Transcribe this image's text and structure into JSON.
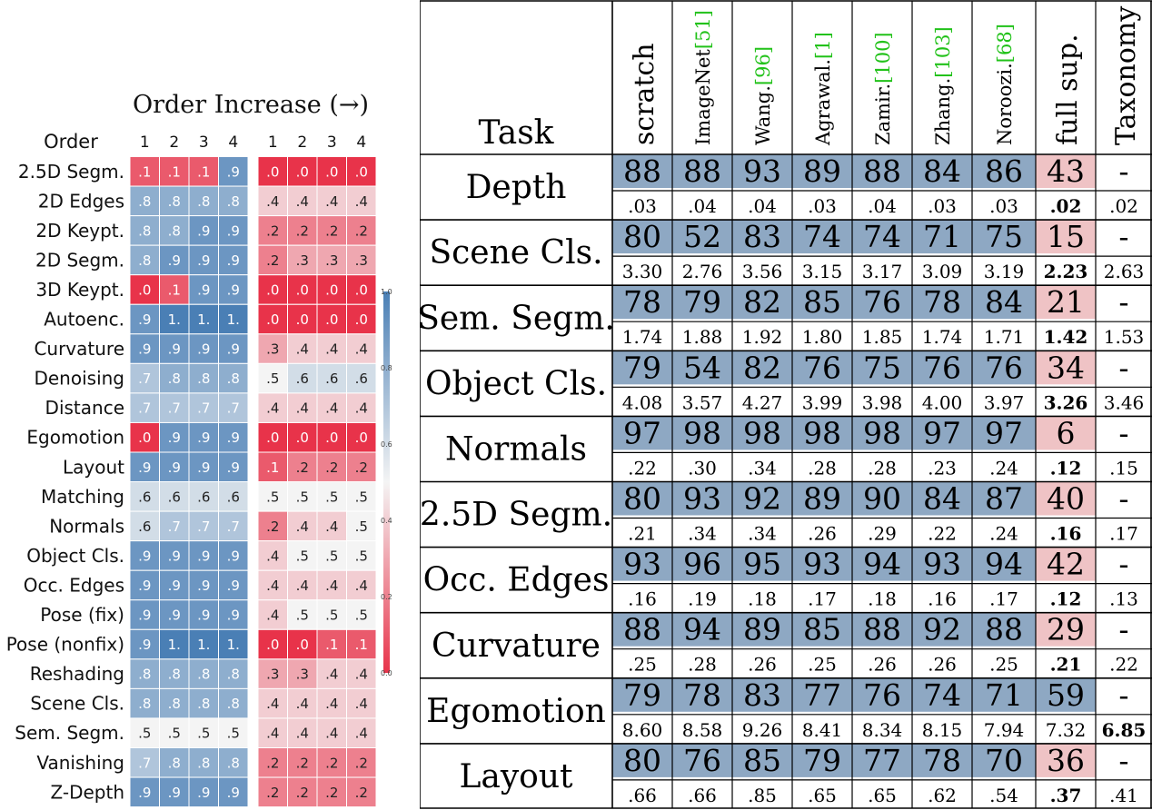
{
  "heatmap": {
    "title": "Order Increase (→)",
    "row_header": "Order",
    "columns": [
      "1",
      "2",
      "3",
      "4"
    ],
    "colorbar_ticks": [
      "1.0",
      "0.8",
      "0.6",
      "0.4",
      "0.2",
      "0.0"
    ],
    "colors": {
      "low": "#e8334a",
      "mid": "#f4f4f4",
      "high": "#4a7fb5"
    }
  },
  "chart_data": {
    "type": "heatmap",
    "title": "Order Increase (→)",
    "ylabel": "Order",
    "x": [
      "1",
      "2",
      "3",
      "4"
    ],
    "range": [
      0.0,
      1.0
    ],
    "rows": [
      "2.5D Segm.",
      "2D Edges",
      "2D Keypt.",
      "2D Segm.",
      "3D Keypt.",
      "Autoenc.",
      "Curvature",
      "Denoising",
      "Distance",
      "Egomotion",
      "Layout",
      "Matching",
      "Normals",
      "Object Cls.",
      "Occ. Edges",
      "Pose (fix)",
      "Pose (nonfix)",
      "Reshading",
      "Scene Cls.",
      "Sem. Segm.",
      "Vanishing",
      "Z-Depth"
    ],
    "panels": [
      {
        "values": [
          [
            0.1,
            0.1,
            0.1,
            0.9
          ],
          [
            0.8,
            0.8,
            0.8,
            0.8
          ],
          [
            0.8,
            0.8,
            0.9,
            0.9
          ],
          [
            0.8,
            0.9,
            0.9,
            0.9
          ],
          [
            0.0,
            0.1,
            0.9,
            0.9
          ],
          [
            0.9,
            1.0,
            1.0,
            1.0
          ],
          [
            0.9,
            0.9,
            0.9,
            0.9
          ],
          [
            0.7,
            0.8,
            0.8,
            0.8
          ],
          [
            0.7,
            0.7,
            0.7,
            0.7
          ],
          [
            0.0,
            0.9,
            0.9,
            0.9
          ],
          [
            0.9,
            0.9,
            0.9,
            0.9
          ],
          [
            0.6,
            0.6,
            0.6,
            0.6
          ],
          [
            0.6,
            0.7,
            0.7,
            0.7
          ],
          [
            0.9,
            0.9,
            0.9,
            0.9
          ],
          [
            0.9,
            0.9,
            0.9,
            0.9
          ],
          [
            0.9,
            0.9,
            0.9,
            0.9
          ],
          [
            0.9,
            1.0,
            1.0,
            1.0
          ],
          [
            0.8,
            0.8,
            0.8,
            0.8
          ],
          [
            0.8,
            0.8,
            0.8,
            0.8
          ],
          [
            0.5,
            0.5,
            0.5,
            0.5
          ],
          [
            0.7,
            0.8,
            0.8,
            0.8
          ],
          [
            0.9,
            0.9,
            0.9,
            0.9
          ]
        ],
        "labels": [
          [
            ".1",
            ".1",
            ".1",
            ".9"
          ],
          [
            ".8",
            ".8",
            ".8",
            ".8"
          ],
          [
            ".8",
            ".8",
            ".9",
            ".9"
          ],
          [
            ".8",
            ".9",
            ".9",
            ".9"
          ],
          [
            ".0",
            ".1",
            ".9",
            ".9"
          ],
          [
            ".9",
            "1.",
            "1.",
            "1."
          ],
          [
            ".9",
            ".9",
            ".9",
            ".9"
          ],
          [
            ".7",
            ".8",
            ".8",
            ".8"
          ],
          [
            ".7",
            ".7",
            ".7",
            ".7"
          ],
          [
            ".0",
            ".9",
            ".9",
            ".9"
          ],
          [
            ".9",
            ".9",
            ".9",
            ".9"
          ],
          [
            ".6",
            ".6",
            ".6",
            ".6"
          ],
          [
            ".6",
            ".7",
            ".7",
            ".7"
          ],
          [
            ".9",
            ".9",
            ".9",
            ".9"
          ],
          [
            ".9",
            ".9",
            ".9",
            ".9"
          ],
          [
            ".9",
            ".9",
            ".9",
            ".9"
          ],
          [
            ".9",
            "1.",
            "1.",
            "1."
          ],
          [
            ".8",
            ".8",
            ".8",
            ".8"
          ],
          [
            ".8",
            ".8",
            ".8",
            ".8"
          ],
          [
            ".5",
            ".5",
            ".5",
            ".5"
          ],
          [
            ".7",
            ".8",
            ".8",
            ".8"
          ],
          [
            ".9",
            ".9",
            ".9",
            ".9"
          ]
        ]
      },
      {
        "values": [
          [
            0.0,
            0.0,
            0.0,
            0.0
          ],
          [
            0.4,
            0.4,
            0.4,
            0.4
          ],
          [
            0.2,
            0.2,
            0.2,
            0.2
          ],
          [
            0.2,
            0.3,
            0.3,
            0.3
          ],
          [
            0.0,
            0.0,
            0.0,
            0.0
          ],
          [
            0.0,
            0.0,
            0.0,
            0.0
          ],
          [
            0.3,
            0.4,
            0.4,
            0.4
          ],
          [
            0.5,
            0.6,
            0.6,
            0.6
          ],
          [
            0.4,
            0.4,
            0.4,
            0.4
          ],
          [
            0.0,
            0.0,
            0.0,
            0.0
          ],
          [
            0.1,
            0.2,
            0.2,
            0.2
          ],
          [
            0.5,
            0.5,
            0.5,
            0.5
          ],
          [
            0.2,
            0.4,
            0.4,
            0.5
          ],
          [
            0.4,
            0.5,
            0.5,
            0.5
          ],
          [
            0.4,
            0.4,
            0.4,
            0.4
          ],
          [
            0.4,
            0.5,
            0.5,
            0.5
          ],
          [
            0.0,
            0.0,
            0.1,
            0.1
          ],
          [
            0.3,
            0.3,
            0.4,
            0.4
          ],
          [
            0.4,
            0.4,
            0.4,
            0.4
          ],
          [
            0.4,
            0.4,
            0.4,
            0.4
          ],
          [
            0.2,
            0.2,
            0.2,
            0.2
          ],
          [
            0.2,
            0.2,
            0.2,
            0.2
          ]
        ],
        "labels": [
          [
            ".0",
            ".0",
            ".0",
            ".0"
          ],
          [
            ".4",
            ".4",
            ".4",
            ".4"
          ],
          [
            ".2",
            ".2",
            ".2",
            ".2"
          ],
          [
            ".2",
            ".3",
            ".3",
            ".3"
          ],
          [
            ".0",
            ".0",
            ".0",
            ".0"
          ],
          [
            ".0",
            ".0",
            ".0",
            ".0"
          ],
          [
            ".3",
            ".4",
            ".4",
            ".4"
          ],
          [
            ".5",
            ".6",
            ".6",
            ".6"
          ],
          [
            ".4",
            ".4",
            ".4",
            ".4"
          ],
          [
            ".0",
            ".0",
            ".0",
            ".0"
          ],
          [
            ".1",
            ".2",
            ".2",
            ".2"
          ],
          [
            ".5",
            ".5",
            ".5",
            ".5"
          ],
          [
            ".2",
            ".4",
            ".4",
            ".5"
          ],
          [
            ".4",
            ".5",
            ".5",
            ".5"
          ],
          [
            ".4",
            ".4",
            ".4",
            ".4"
          ],
          [
            ".4",
            ".5",
            ".5",
            ".5"
          ],
          [
            ".0",
            ".0",
            ".1",
            ".1"
          ],
          [
            ".3",
            ".3",
            ".4",
            ".4"
          ],
          [
            ".4",
            ".4",
            ".4",
            ".4"
          ],
          [
            ".4",
            ".4",
            ".4",
            ".4"
          ],
          [
            ".2",
            ".2",
            ".2",
            ".2"
          ],
          [
            ".2",
            ".2",
            ".2",
            ".2"
          ]
        ]
      }
    ]
  },
  "table": {
    "task_header": "Task",
    "columns": [
      {
        "name": "scratch",
        "ref": ""
      },
      {
        "name": "ImageNet",
        "ref": "[51]"
      },
      {
        "name": "Wang.",
        "ref": "[96]"
      },
      {
        "name": "Agrawal.",
        "ref": "[1]"
      },
      {
        "name": "Zamir.",
        "ref": "[100]"
      },
      {
        "name": "Zhang.",
        "ref": "[103]"
      },
      {
        "name": "Noroozi.",
        "ref": "[68]"
      },
      {
        "name": "full sup.",
        "ref": ""
      },
      {
        "name": "Taxonomy",
        "ref": ""
      }
    ],
    "colors": {
      "win": "#8ea8c3",
      "full_sup": "#efc3c5",
      "ref": "#22c21a"
    },
    "rows": [
      {
        "task": "Depth",
        "win_rates": [
          "88",
          "88",
          "93",
          "89",
          "88",
          "84",
          "86",
          "43",
          "-"
        ],
        "losses": [
          ".03",
          ".04",
          ".04",
          ".03",
          ".04",
          ".03",
          ".03",
          ".02",
          ".02"
        ],
        "bold_loss": [
          7
        ]
      },
      {
        "task": "Scene Cls.",
        "win_rates": [
          "80",
          "52",
          "83",
          "74",
          "74",
          "71",
          "75",
          "15",
          "-"
        ],
        "losses": [
          "3.30",
          "2.76",
          "3.56",
          "3.15",
          "3.17",
          "3.09",
          "3.19",
          "2.23",
          "2.63"
        ],
        "bold_loss": [
          7
        ]
      },
      {
        "task": "Sem. Segm.",
        "win_rates": [
          "78",
          "79",
          "82",
          "85",
          "76",
          "78",
          "84",
          "21",
          "-"
        ],
        "losses": [
          "1.74",
          "1.88",
          "1.92",
          "1.80",
          "1.85",
          "1.74",
          "1.71",
          "1.42",
          "1.53"
        ],
        "bold_loss": [
          7
        ]
      },
      {
        "task": "Object Cls.",
        "win_rates": [
          "79",
          "54",
          "82",
          "76",
          "75",
          "76",
          "76",
          "34",
          "-"
        ],
        "losses": [
          "4.08",
          "3.57",
          "4.27",
          "3.99",
          "3.98",
          "4.00",
          "3.97",
          "3.26",
          "3.46"
        ],
        "bold_loss": [
          7
        ]
      },
      {
        "task": "Normals",
        "win_rates": [
          "97",
          "98",
          "98",
          "98",
          "98",
          "97",
          "97",
          "6",
          "-"
        ],
        "losses": [
          ".22",
          ".30",
          ".34",
          ".28",
          ".28",
          ".23",
          ".24",
          ".12",
          ".15"
        ],
        "bold_loss": [
          7
        ]
      },
      {
        "task": "2.5D Segm.",
        "win_rates": [
          "80",
          "93",
          "92",
          "89",
          "90",
          "84",
          "87",
          "40",
          "-"
        ],
        "losses": [
          ".21",
          ".34",
          ".34",
          ".26",
          ".29",
          ".22",
          ".24",
          ".16",
          ".17"
        ],
        "bold_loss": [
          7
        ]
      },
      {
        "task": "Occ. Edges",
        "win_rates": [
          "93",
          "96",
          "95",
          "93",
          "94",
          "93",
          "94",
          "42",
          "-"
        ],
        "losses": [
          ".16",
          ".19",
          ".18",
          ".17",
          ".18",
          ".16",
          ".17",
          ".12",
          ".13"
        ],
        "bold_loss": [
          7
        ]
      },
      {
        "task": "Curvature",
        "win_rates": [
          "88",
          "94",
          "89",
          "85",
          "88",
          "92",
          "88",
          "29",
          "-"
        ],
        "losses": [
          ".25",
          ".28",
          ".26",
          ".25",
          ".26",
          ".26",
          ".25",
          ".21",
          ".22"
        ],
        "bold_loss": [
          7
        ]
      },
      {
        "task": "Egomotion",
        "win_rates": [
          "79",
          "78",
          "83",
          "77",
          "76",
          "74",
          "71",
          "59",
          "-"
        ],
        "losses": [
          "8.60",
          "8.58",
          "9.26",
          "8.41",
          "8.34",
          "8.15",
          "7.94",
          "7.32",
          "6.85"
        ],
        "bold_loss": [
          8
        ]
      },
      {
        "task": "Layout",
        "win_rates": [
          "80",
          "76",
          "85",
          "79",
          "77",
          "78",
          "70",
          "36",
          "-"
        ],
        "losses": [
          ".66",
          ".66",
          ".85",
          ".65",
          ".65",
          ".62",
          ".54",
          ".37",
          ".41"
        ],
        "bold_loss": [
          7
        ]
      }
    ]
  }
}
